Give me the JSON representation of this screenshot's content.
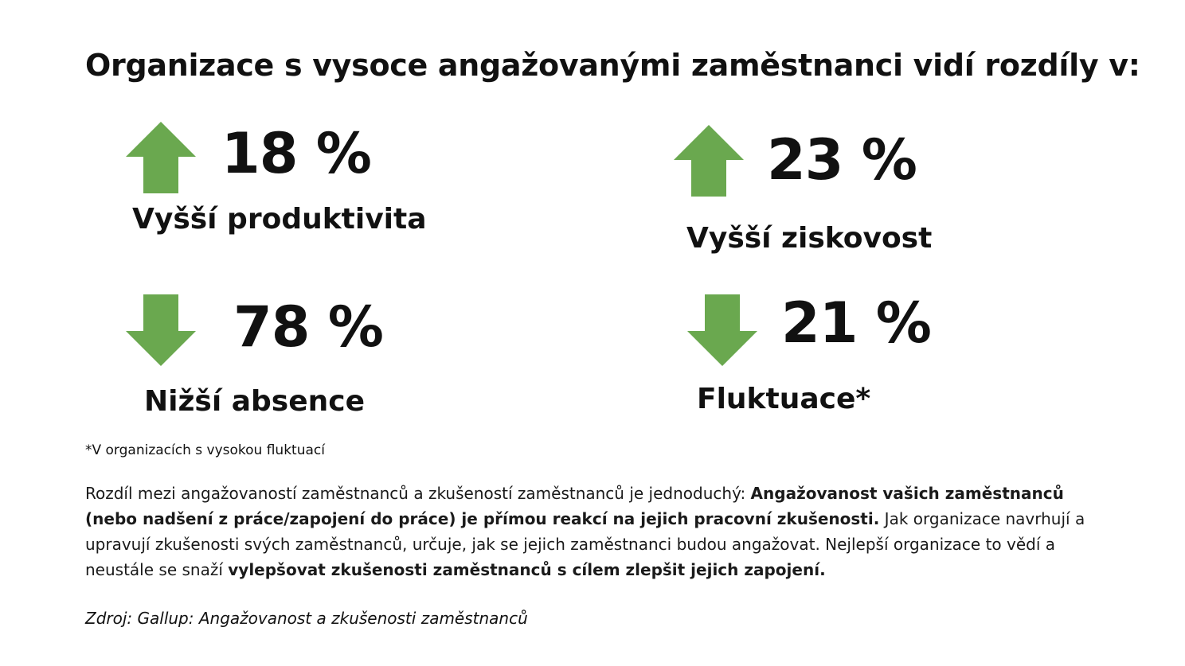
{
  "title": "Organizace s vysoce angažovanými zaměstnanci vidí rozdíly v:",
  "accent_color": "#6aa84f",
  "stats": [
    {
      "direction": "up",
      "icon": "arrow-up-icon",
      "value": "18 %",
      "label": "Vyšší produktivita"
    },
    {
      "direction": "up",
      "icon": "arrow-up-icon",
      "value": "23 %",
      "label": "Vyšší ziskovost"
    },
    {
      "direction": "down",
      "icon": "arrow-down-icon",
      "value": "78 %",
      "label": "Nižší absence"
    },
    {
      "direction": "down",
      "icon": "arrow-down-icon",
      "value": "21 %",
      "label": "Fluktuace*"
    }
  ],
  "footnote": "*V organizacích s vysokou fluktuací",
  "paragraph": {
    "part1": "Rozdíl mezi angažovaností zaměstnanců a zkušeností zaměstnanců je jednoduchý: ",
    "bold1": "Angažovanost vašich zaměstnanců (nebo nadšení z práce/zapojení do práce) je přímou reakcí na jejich pracovní zkušenosti.",
    "part2": " Jak organizace navrhují a upravují zkušenosti svých zaměstnanců, určuje, jak se jejich zaměstnanci budou angažovat. Nejlepší organizace to vědí a neustále se snaží ",
    "bold2": "vylepšovat zkušenosti zaměstnanců s cílem zlepšit jejich zapojení."
  },
  "source": "Zdroj: Gallup: Angažovanost a zkušenosti zaměstnanců"
}
